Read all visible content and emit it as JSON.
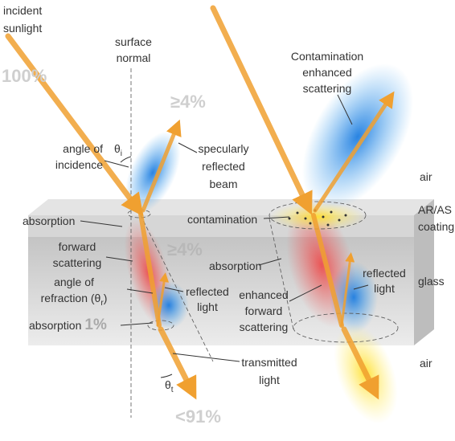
{
  "labels": {
    "incident_sunlight": [
      "incident",
      "sunlight"
    ],
    "surface_normal": [
      "surface",
      "normal"
    ],
    "incident_percent": "100%",
    "reflected_percent": "≥4%",
    "angle_of_incidence": [
      "angle of",
      "incidence"
    ],
    "theta_i": {
      "symbol": "θ",
      "subscript": "i"
    },
    "specularly_reflected_beam": [
      "specularly",
      "reflected",
      "beam"
    ],
    "absorption_top": "absorption",
    "forward_scattering": [
      "forward",
      "scattering"
    ],
    "internal_reflected_percent": "≥4%",
    "angle_of_refraction": {
      "line1": "angle of",
      "line2": "refraction (θ",
      "subscript": "r",
      "end": ")"
    },
    "reflected_light_left": [
      "reflected",
      "light"
    ],
    "absorption_bottom": {
      "text": "absorption",
      "percent": "1%"
    },
    "theta_t": {
      "symbol": "θ",
      "subscript": "t"
    },
    "transmitted_percent": "<91%",
    "transmitted_light": [
      "transmitted",
      "light"
    ],
    "contamination_enhanced_scattering": [
      "Contamination",
      "enhanced",
      "scattering"
    ],
    "contamination": "contamination",
    "absorption_right": "absorption",
    "enhanced_forward_scattering": [
      "enhanced",
      "forward",
      "scattering"
    ],
    "reflected_light_right": [
      "reflected",
      "light"
    ]
  },
  "layers": {
    "air_top": "air",
    "coating": [
      "AR/AS",
      "coating"
    ],
    "glass": "glass",
    "air_bottom": "air"
  }
}
